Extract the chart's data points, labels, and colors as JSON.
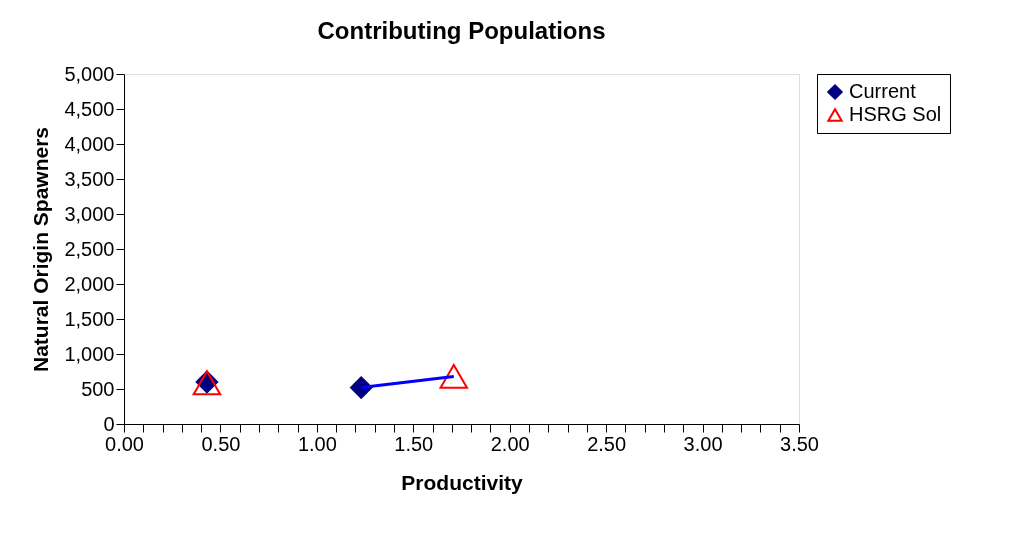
{
  "chart_data": {
    "type": "scatter",
    "title": "Contributing Populations",
    "xlabel": "Productivity",
    "ylabel": "Natural Origin Spawners",
    "series": [
      {
        "name": "Current",
        "type": "scatter",
        "marker": "diamond",
        "color": "#000080",
        "x": [
          0.43,
          1.23
        ],
        "values": [
          600,
          520
        ]
      },
      {
        "name": "HSRG Sol",
        "type": "scatter",
        "marker": "triangle",
        "color": "#ff0000",
        "x": [
          0.43,
          1.71
        ],
        "values": [
          590,
          680
        ]
      },
      {
        "type": "line",
        "marker": "none",
        "color": "#0000ff",
        "x": [
          1.23,
          1.71
        ],
        "values": [
          520,
          680
        ]
      }
    ],
    "xlim": [
      0,
      3.5
    ],
    "ylim": [
      0,
      5000
    ],
    "xticks": [
      {
        "value": 0,
        "label": "0.00"
      },
      {
        "value": 0.1,
        "label": null
      },
      {
        "value": 0.2,
        "label": null
      },
      {
        "value": 0.3,
        "label": null
      },
      {
        "value": 0.4,
        "label": null
      },
      {
        "value": 0.5,
        "label": "0.50"
      },
      {
        "value": 0.6,
        "label": null
      },
      {
        "value": 0.7,
        "label": null
      },
      {
        "value": 0.8,
        "label": null
      },
      {
        "value": 0.9,
        "label": null
      },
      {
        "value": 1,
        "label": "1.00"
      },
      {
        "value": 1.1,
        "label": null
      },
      {
        "value": 1.2,
        "label": null
      },
      {
        "value": 1.3,
        "label": null
      },
      {
        "value": 1.4,
        "label": null
      },
      {
        "value": 1.5,
        "label": "1.50"
      },
      {
        "value": 1.6,
        "label": null
      },
      {
        "value": 1.7,
        "label": null
      },
      {
        "value": 1.8,
        "label": null
      },
      {
        "value": 1.9,
        "label": null
      },
      {
        "value": 2,
        "label": "2.00"
      },
      {
        "value": 2.1,
        "label": null
      },
      {
        "value": 2.2,
        "label": null
      },
      {
        "value": 2.3,
        "label": null
      },
      {
        "value": 2.4,
        "label": null
      },
      {
        "value": 2.5,
        "label": "2.50"
      },
      {
        "value": 2.6,
        "label": null
      },
      {
        "value": 2.7,
        "label": null
      },
      {
        "value": 2.8,
        "label": null
      },
      {
        "value": 2.9,
        "label": null
      },
      {
        "value": 3,
        "label": "3.00"
      },
      {
        "value": 3.1,
        "label": null
      },
      {
        "value": 3.2,
        "label": null
      },
      {
        "value": 3.3,
        "label": null
      },
      {
        "value": 3.4,
        "label": null
      },
      {
        "value": 3.5,
        "label": "3.50"
      }
    ],
    "yticks": [
      0,
      500,
      {
        "value": 1000,
        "label": "1,000"
      },
      {
        "value": 1500,
        "label": "1,500"
      },
      {
        "value": 2000,
        "label": "2,000"
      },
      {
        "value": 2500,
        "label": "2,500"
      },
      {
        "value": 3000,
        "label": "3,000"
      },
      {
        "value": 3500,
        "label": "3,500"
      },
      {
        "value": 4000,
        "label": "4,000"
      },
      {
        "value": 4500,
        "label": "4,500"
      },
      {
        "value": 5000,
        "label": "5,000"
      }
    ],
    "grid": false,
    "legend": "right"
  }
}
